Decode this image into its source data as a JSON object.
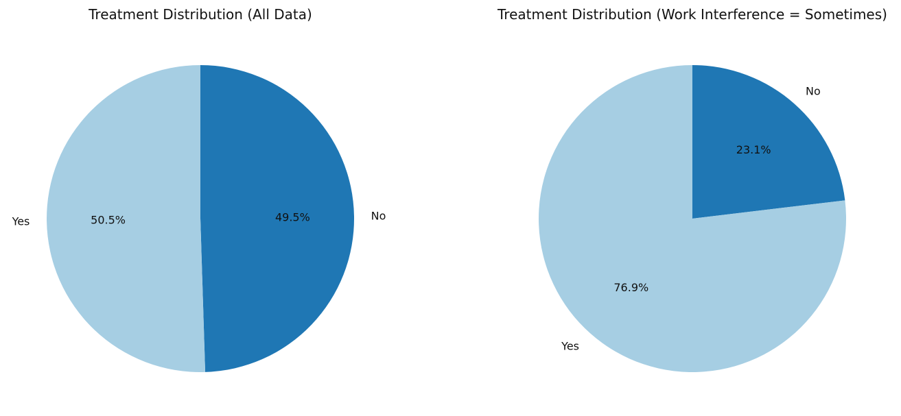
{
  "chart_data": [
    {
      "type": "pie",
      "title": "Treatment Distribution (All Data)",
      "categories": [
        "No",
        "Yes"
      ],
      "values": [
        49.5,
        50.5
      ],
      "value_labels": [
        "49.5%",
        "50.5%"
      ],
      "colors": [
        "#1f77b4",
        "#a6cee3"
      ],
      "start": "top, clockwise"
    },
    {
      "type": "pie",
      "title": "Treatment Distribution (Work Interference = Sometimes)",
      "categories": [
        "No",
        "Yes"
      ],
      "values": [
        23.1,
        76.9
      ],
      "value_labels": [
        "23.1%",
        "76.9%"
      ],
      "colors": [
        "#1f77b4",
        "#a6cee3"
      ],
      "start": "top, clockwise"
    }
  ]
}
